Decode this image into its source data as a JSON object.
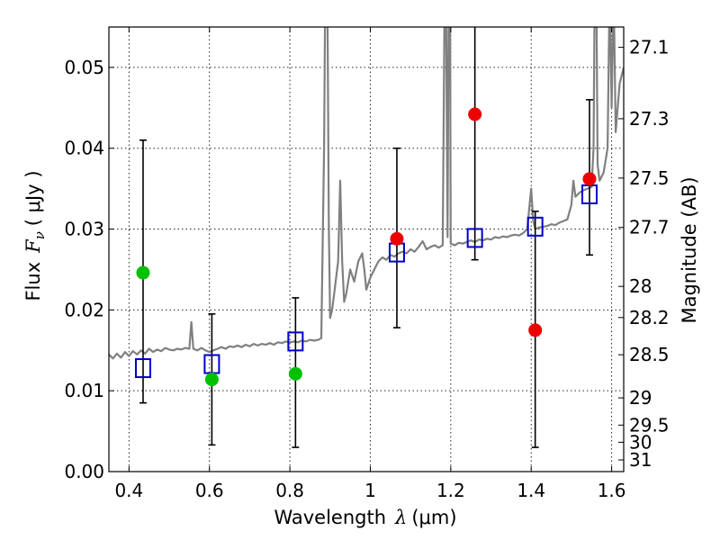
{
  "chart_data": {
    "type": "scatter",
    "xlabel": {
      "prefix": "Wavelength",
      "symbol": "λ",
      "unit": "(μm)"
    },
    "ylabel": {
      "prefix": "Flux",
      "symbol_main": "F",
      "symbol_sub": "ν",
      "unit": "( μJy )"
    },
    "y2label": "Magnitude (AB)",
    "xlim": [
      0.35,
      1.63
    ],
    "ylim": [
      0.0,
      0.055
    ],
    "grid": true,
    "x_ticks": [
      {
        "value": 0.4,
        "label": "0.4"
      },
      {
        "value": 0.6,
        "label": "0.6"
      },
      {
        "value": 0.8,
        "label": "0.8"
      },
      {
        "value": 1.0,
        "label": "1"
      },
      {
        "value": 1.2,
        "label": "1.2"
      },
      {
        "value": 1.4,
        "label": "1.4"
      },
      {
        "value": 1.6,
        "label": "1.6"
      }
    ],
    "y_ticks": [
      {
        "value": 0.0,
        "label": "0.00"
      },
      {
        "value": 0.01,
        "label": "0.01"
      },
      {
        "value": 0.02,
        "label": "0.02"
      },
      {
        "value": 0.03,
        "label": "0.03"
      },
      {
        "value": 0.04,
        "label": "0.04"
      },
      {
        "value": 0.05,
        "label": "0.05"
      }
    ],
    "y2_ticks": [
      {
        "mag": 27.1,
        "label": "27.1"
      },
      {
        "mag": 27.3,
        "label": "27.3"
      },
      {
        "mag": 27.5,
        "label": "27.5"
      },
      {
        "mag": 27.7,
        "label": "27.7"
      },
      {
        "mag": 28.0,
        "label": "28"
      },
      {
        "mag": 28.2,
        "label": "28.2"
      },
      {
        "mag": 28.5,
        "label": "28.5"
      },
      {
        "mag": 29.0,
        "label": "29"
      },
      {
        "mag": 29.5,
        "label": "29.5"
      },
      {
        "mag": 30.0,
        "label": "30"
      },
      {
        "mag": 31.0,
        "label": "31"
      }
    ],
    "model_spectrum": {
      "color": "#808080",
      "points": [
        [
          0.35,
          0.0145
        ],
        [
          0.36,
          0.014
        ],
        [
          0.37,
          0.0146
        ],
        [
          0.38,
          0.0141
        ],
        [
          0.39,
          0.0148
        ],
        [
          0.4,
          0.0143
        ],
        [
          0.41,
          0.0149
        ],
        [
          0.42,
          0.0145
        ],
        [
          0.43,
          0.015
        ],
        [
          0.44,
          0.0146
        ],
        [
          0.45,
          0.0152
        ],
        [
          0.46,
          0.0148
        ],
        [
          0.47,
          0.0151
        ],
        [
          0.48,
          0.0149
        ],
        [
          0.49,
          0.0153
        ],
        [
          0.5,
          0.0151
        ],
        [
          0.51,
          0.015
        ],
        [
          0.52,
          0.0152
        ],
        [
          0.53,
          0.0151
        ],
        [
          0.54,
          0.0153
        ],
        [
          0.55,
          0.0152
        ],
        [
          0.555,
          0.0185
        ],
        [
          0.56,
          0.0152
        ],
        [
          0.57,
          0.015
        ],
        [
          0.58,
          0.0153
        ],
        [
          0.59,
          0.015
        ],
        [
          0.6,
          0.0148
        ],
        [
          0.61,
          0.015
        ],
        [
          0.62,
          0.0152
        ],
        [
          0.63,
          0.0154
        ],
        [
          0.64,
          0.0152
        ],
        [
          0.65,
          0.0155
        ],
        [
          0.66,
          0.0154
        ],
        [
          0.67,
          0.0156
        ],
        [
          0.68,
          0.0154
        ],
        [
          0.69,
          0.0157
        ],
        [
          0.7,
          0.0155
        ],
        [
          0.71,
          0.0158
        ],
        [
          0.72,
          0.0156
        ],
        [
          0.73,
          0.0158
        ],
        [
          0.74,
          0.0157
        ],
        [
          0.75,
          0.0159
        ],
        [
          0.76,
          0.0157
        ],
        [
          0.77,
          0.016
        ],
        [
          0.78,
          0.0159
        ],
        [
          0.79,
          0.0161
        ],
        [
          0.8,
          0.016
        ],
        [
          0.81,
          0.0161
        ],
        [
          0.82,
          0.016
        ],
        [
          0.83,
          0.0162
        ],
        [
          0.84,
          0.0161
        ],
        [
          0.85,
          0.0163
        ],
        [
          0.86,
          0.0162
        ],
        [
          0.87,
          0.0163
        ],
        [
          0.878,
          0.0165
        ],
        [
          0.885,
          0.04
        ],
        [
          0.888,
          0.06
        ],
        [
          0.893,
          0.06
        ],
        [
          0.897,
          0.03
        ],
        [
          0.9,
          0.019
        ],
        [
          0.905,
          0.02
        ],
        [
          0.91,
          0.022
        ],
        [
          0.915,
          0.024
        ],
        [
          0.92,
          0.026
        ],
        [
          0.925,
          0.036
        ],
        [
          0.93,
          0.026
        ],
        [
          0.935,
          0.021
        ],
        [
          0.94,
          0.022
        ],
        [
          0.95,
          0.025
        ],
        [
          0.96,
          0.0235
        ],
        [
          0.97,
          0.026
        ],
        [
          0.98,
          0.027
        ],
        [
          0.985,
          0.025
        ],
        [
          0.99,
          0.0225
        ],
        [
          1.0,
          0.024
        ],
        [
          1.01,
          0.025
        ],
        [
          1.02,
          0.026
        ],
        [
          1.03,
          0.0265
        ],
        [
          1.04,
          0.0262
        ],
        [
          1.05,
          0.0268
        ],
        [
          1.06,
          0.0266
        ],
        [
          1.07,
          0.027
        ],
        [
          1.08,
          0.0272
        ],
        [
          1.09,
          0.027
        ],
        [
          1.1,
          0.0275
        ],
        [
          1.11,
          0.0272
        ],
        [
          1.12,
          0.0278
        ],
        [
          1.13,
          0.0285
        ],
        [
          1.14,
          0.0275
        ],
        [
          1.15,
          0.0278
        ],
        [
          1.16,
          0.028
        ],
        [
          1.17,
          0.0277
        ],
        [
          1.18,
          0.028
        ],
        [
          1.185,
          0.06
        ],
        [
          1.188,
          0.06
        ],
        [
          1.192,
          0.029
        ],
        [
          1.195,
          0.06
        ],
        [
          1.198,
          0.06
        ],
        [
          1.2,
          0.0282
        ],
        [
          1.21,
          0.028
        ],
        [
          1.22,
          0.0283
        ],
        [
          1.23,
          0.0282
        ],
        [
          1.24,
          0.0284
        ],
        [
          1.25,
          0.0286
        ],
        [
          1.26,
          0.0284
        ],
        [
          1.27,
          0.0287
        ],
        [
          1.28,
          0.0286
        ],
        [
          1.29,
          0.0288
        ],
        [
          1.3,
          0.0287
        ],
        [
          1.31,
          0.029
        ],
        [
          1.32,
          0.0289
        ],
        [
          1.33,
          0.0291
        ],
        [
          1.34,
          0.029
        ],
        [
          1.35,
          0.0292
        ],
        [
          1.36,
          0.0293
        ],
        [
          1.37,
          0.0292
        ],
        [
          1.38,
          0.0295
        ],
        [
          1.39,
          0.03
        ],
        [
          1.4,
          0.035
        ],
        [
          1.405,
          0.031
        ],
        [
          1.41,
          0.03
        ],
        [
          1.42,
          0.0302
        ],
        [
          1.43,
          0.0303
        ],
        [
          1.44,
          0.0304
        ],
        [
          1.45,
          0.0306
        ],
        [
          1.46,
          0.0305
        ],
        [
          1.47,
          0.0308
        ],
        [
          1.48,
          0.031
        ],
        [
          1.49,
          0.0312
        ],
        [
          1.5,
          0.033
        ],
        [
          1.505,
          0.036
        ],
        [
          1.51,
          0.034
        ],
        [
          1.52,
          0.0345
        ],
        [
          1.53,
          0.0348
        ],
        [
          1.54,
          0.035
        ],
        [
          1.55,
          0.0352
        ],
        [
          1.555,
          0.04
        ],
        [
          1.558,
          0.06
        ],
        [
          1.562,
          0.06
        ],
        [
          1.565,
          0.038
        ],
        [
          1.57,
          0.036
        ],
        [
          1.58,
          0.037
        ],
        [
          1.59,
          0.04
        ],
        [
          1.595,
          0.06
        ],
        [
          1.6,
          0.045
        ],
        [
          1.605,
          0.06
        ],
        [
          1.61,
          0.042
        ],
        [
          1.62,
          0.048
        ],
        [
          1.63,
          0.05
        ]
      ]
    },
    "series": [
      {
        "marker": "square-open",
        "color": "#0000cc",
        "points": [
          {
            "x": 0.435,
            "y": 0.0128,
            "yerr": [
              0.0085,
              0.041
            ]
          },
          {
            "x": 0.606,
            "y": 0.0133,
            "yerr": [
              0.0033,
              0.0195
            ]
          },
          {
            "x": 0.814,
            "y": 0.0161,
            "yerr": [
              0.003,
              0.0215
            ]
          },
          {
            "x": 1.066,
            "y": 0.0271,
            "yerr": [
              0.0178,
              0.04
            ]
          },
          {
            "x": 1.26,
            "y": 0.0289,
            "yerr": [
              0.0262,
              0.06
            ]
          },
          {
            "x": 1.41,
            "y": 0.0303,
            "yerr": [
              0.003,
              0.0322
            ]
          },
          {
            "x": 1.545,
            "y": 0.0343,
            "yerr": [
              0.0268,
              0.046
            ]
          }
        ]
      },
      {
        "marker": "circle-filled",
        "color": "#00c000",
        "points": [
          {
            "x": 0.435,
            "y": 0.0246
          },
          {
            "x": 0.606,
            "y": 0.0114
          },
          {
            "x": 0.814,
            "y": 0.0121
          }
        ]
      },
      {
        "marker": "circle-filled",
        "color": "#ee0000",
        "points": [
          {
            "x": 1.066,
            "y": 0.0288
          },
          {
            "x": 1.26,
            "y": 0.0442
          },
          {
            "x": 1.41,
            "y": 0.0175
          },
          {
            "x": 1.545,
            "y": 0.0362
          }
        ]
      }
    ]
  }
}
